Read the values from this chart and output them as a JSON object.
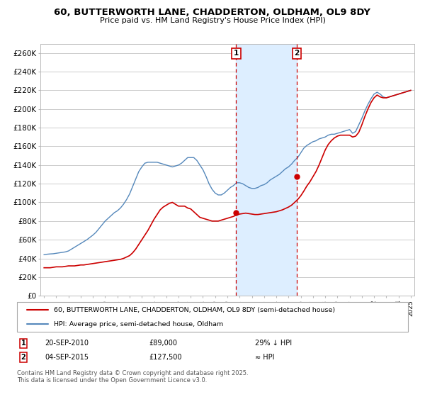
{
  "title": "60, BUTTERWORTH LANE, CHADDERTON, OLDHAM, OL9 8DY",
  "subtitle": "Price paid vs. HM Land Registry's House Price Index (HPI)",
  "ylim": [
    0,
    270000
  ],
  "yticks": [
    0,
    20000,
    40000,
    60000,
    80000,
    100000,
    120000,
    140000,
    160000,
    180000,
    200000,
    220000,
    240000,
    260000
  ],
  "ytick_labels": [
    "£0",
    "£20K",
    "£40K",
    "£60K",
    "£80K",
    "£100K",
    "£120K",
    "£140K",
    "£160K",
    "£180K",
    "£200K",
    "£220K",
    "£240K",
    "£260K"
  ],
  "sale1_date": 2010.72,
  "sale1_price": 89000,
  "sale1_label": "1",
  "sale1_text": "20-SEP-2010",
  "sale1_info": "£89,000",
  "sale1_hpi": "29% ↓ HPI",
  "sale2_date": 2015.67,
  "sale2_price": 127500,
  "sale2_label": "2",
  "sale2_text": "04-SEP-2015",
  "sale2_info": "£127,500",
  "sale2_hpi": "≈ HPI",
  "line1_color": "#cc0000",
  "line2_color": "#5588bb",
  "shade_color": "#ddeeff",
  "grid_color": "#cccccc",
  "background_color": "#ffffff",
  "legend_line1": "60, BUTTERWORTH LANE, CHADDERTON, OLDHAM, OL9 8DY (semi-detached house)",
  "legend_line2": "HPI: Average price, semi-detached house, Oldham",
  "footer": "Contains HM Land Registry data © Crown copyright and database right 2025.\nThis data is licensed under the Open Government Licence v3.0.",
  "hpi_x": [
    1995.0,
    1995.25,
    1995.5,
    1995.75,
    1996.0,
    1996.25,
    1996.5,
    1996.75,
    1997.0,
    1997.25,
    1997.5,
    1997.75,
    1998.0,
    1998.25,
    1998.5,
    1998.75,
    1999.0,
    1999.25,
    1999.5,
    1999.75,
    2000.0,
    2000.25,
    2000.5,
    2000.75,
    2001.0,
    2001.25,
    2001.5,
    2001.75,
    2002.0,
    2002.25,
    2002.5,
    2002.75,
    2003.0,
    2003.25,
    2003.5,
    2003.75,
    2004.0,
    2004.25,
    2004.5,
    2004.75,
    2005.0,
    2005.25,
    2005.5,
    2005.75,
    2006.0,
    2006.25,
    2006.5,
    2006.75,
    2007.0,
    2007.25,
    2007.5,
    2007.75,
    2008.0,
    2008.25,
    2008.5,
    2008.75,
    2009.0,
    2009.25,
    2009.5,
    2009.75,
    2010.0,
    2010.25,
    2010.5,
    2010.75,
    2011.0,
    2011.25,
    2011.5,
    2011.75,
    2012.0,
    2012.25,
    2012.5,
    2012.75,
    2013.0,
    2013.25,
    2013.5,
    2013.75,
    2014.0,
    2014.25,
    2014.5,
    2014.75,
    2015.0,
    2015.25,
    2015.5,
    2015.75,
    2016.0,
    2016.25,
    2016.5,
    2016.75,
    2017.0,
    2017.25,
    2017.5,
    2017.75,
    2018.0,
    2018.25,
    2018.5,
    2018.75,
    2019.0,
    2019.25,
    2019.5,
    2019.75,
    2020.0,
    2020.25,
    2020.5,
    2020.75,
    2021.0,
    2021.25,
    2021.5,
    2021.75,
    2022.0,
    2022.25,
    2022.5,
    2022.75,
    2023.0,
    2023.25,
    2023.5,
    2023.75,
    2024.0,
    2024.25,
    2024.5,
    2024.75,
    2025.0
  ],
  "hpi_y": [
    44000,
    44500,
    44800,
    45000,
    45500,
    46000,
    46500,
    47000,
    48000,
    50000,
    52000,
    54000,
    56000,
    58000,
    60000,
    62500,
    65000,
    68000,
    72000,
    76000,
    80000,
    83000,
    86000,
    89000,
    91000,
    94000,
    98000,
    103000,
    109000,
    117000,
    125000,
    133000,
    138000,
    142000,
    143000,
    143000,
    143000,
    143000,
    142000,
    141000,
    140000,
    139000,
    138000,
    139000,
    140000,
    142000,
    145000,
    148000,
    148000,
    148000,
    145000,
    140000,
    135000,
    128000,
    120000,
    114000,
    110000,
    108000,
    108000,
    110000,
    113000,
    116000,
    118000,
    121000,
    121000,
    120000,
    118000,
    116000,
    115000,
    115000,
    116000,
    118000,
    119000,
    121000,
    124000,
    126000,
    128000,
    130000,
    133000,
    136000,
    138000,
    141000,
    145000,
    148000,
    153000,
    158000,
    161000,
    163000,
    165000,
    166000,
    168000,
    169000,
    170000,
    172000,
    173000,
    173000,
    174000,
    175000,
    176000,
    177000,
    178000,
    174000,
    176000,
    183000,
    190000,
    198000,
    205000,
    211000,
    216000,
    218000,
    216000,
    213000,
    212000,
    213000,
    214000,
    215000,
    216000,
    217000,
    218000,
    219000,
    220000
  ],
  "prop_x": [
    1995.0,
    1995.25,
    1995.5,
    1995.75,
    1996.0,
    1996.25,
    1996.5,
    1996.75,
    1997.0,
    1997.25,
    1997.5,
    1997.75,
    1998.0,
    1998.25,
    1998.5,
    1998.75,
    1999.0,
    1999.25,
    1999.5,
    1999.75,
    2000.0,
    2000.25,
    2000.5,
    2000.75,
    2001.0,
    2001.25,
    2001.5,
    2001.75,
    2002.0,
    2002.25,
    2002.5,
    2002.75,
    2003.0,
    2003.25,
    2003.5,
    2003.75,
    2004.0,
    2004.25,
    2004.5,
    2004.75,
    2005.0,
    2005.25,
    2005.5,
    2005.75,
    2006.0,
    2006.25,
    2006.5,
    2006.75,
    2007.0,
    2007.25,
    2007.5,
    2007.75,
    2008.0,
    2008.25,
    2008.5,
    2008.75,
    2009.0,
    2009.25,
    2009.5,
    2009.75,
    2010.0,
    2010.25,
    2010.5,
    2010.75,
    2011.0,
    2011.25,
    2011.5,
    2011.75,
    2012.0,
    2012.25,
    2012.5,
    2012.75,
    2013.0,
    2013.25,
    2013.5,
    2013.75,
    2014.0,
    2014.25,
    2014.5,
    2014.75,
    2015.0,
    2015.25,
    2015.5,
    2015.75,
    2016.0,
    2016.25,
    2016.5,
    2016.75,
    2017.0,
    2017.25,
    2017.5,
    2017.75,
    2018.0,
    2018.25,
    2018.5,
    2018.75,
    2019.0,
    2019.25,
    2019.5,
    2019.75,
    2020.0,
    2020.25,
    2020.5,
    2020.75,
    2021.0,
    2021.25,
    2021.5,
    2021.75,
    2022.0,
    2022.25,
    2022.5,
    2022.75,
    2023.0,
    2023.25,
    2023.5,
    2023.75,
    2024.0,
    2024.25,
    2024.5,
    2024.75,
    2025.0
  ],
  "prop_y": [
    30000,
    30000,
    30000,
    30500,
    31000,
    31000,
    31000,
    31500,
    32000,
    32000,
    32000,
    32500,
    33000,
    33000,
    33500,
    34000,
    34500,
    35000,
    35500,
    36000,
    36500,
    37000,
    37500,
    38000,
    38500,
    39000,
    40000,
    41500,
    43000,
    46000,
    50000,
    55000,
    60000,
    65000,
    70000,
    76000,
    82000,
    87000,
    92000,
    95000,
    97000,
    99000,
    100000,
    98000,
    96000,
    96000,
    96000,
    94000,
    93000,
    90000,
    87000,
    84000,
    83000,
    82000,
    81000,
    80000,
    80000,
    80000,
    81000,
    82000,
    83000,
    84000,
    85000,
    86500,
    87500,
    88000,
    88500,
    88000,
    87500,
    87000,
    87000,
    87500,
    88000,
    88500,
    89000,
    89500,
    90000,
    91000,
    92000,
    93500,
    95000,
    97000,
    100000,
    103000,
    107000,
    112000,
    117500,
    122000,
    127500,
    133000,
    140000,
    148000,
    156000,
    162000,
    166000,
    169000,
    171000,
    172000,
    172000,
    172000,
    172000,
    170000,
    171000,
    175000,
    183000,
    192000,
    200000,
    207000,
    212000,
    215000,
    213000,
    212000,
    212000,
    213000,
    214000,
    215000,
    216000,
    217000,
    218000,
    219000,
    220000
  ]
}
